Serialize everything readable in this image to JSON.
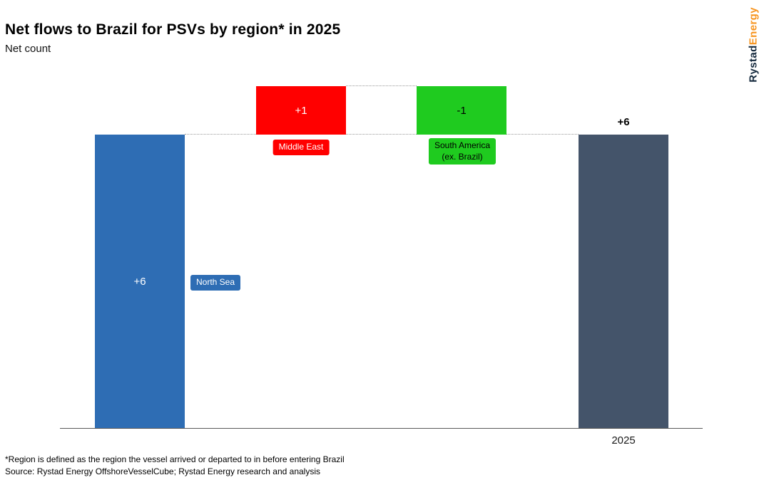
{
  "header": {
    "title": "Net flows to Brazil for PSVs by region* in 2025",
    "subtitle": "Net count"
  },
  "logo": {
    "word1": "Rystad",
    "word2": "Energy",
    "word1_color": "#13283C",
    "word2_color": "#F7941E"
  },
  "chart_data": {
    "type": "bar",
    "subtype": "waterfall",
    "title": "Net flows to Brazil for PSVs by region* in 2025",
    "ylabel": "Net count",
    "ylim": [
      0,
      7
    ],
    "grid": false,
    "legend": "none",
    "categories": [
      "North Sea",
      "Middle East",
      "South America (ex. Brazil)",
      "2025"
    ],
    "values": [
      6,
      1,
      -1,
      6
    ],
    "x_tick_label": "2025",
    "connector_color": "#9A9A9A",
    "axis_color": "#595959",
    "bars": [
      {
        "name": "North Sea",
        "value": 6,
        "display": "+6",
        "start": 0,
        "end": 6,
        "color": "#2E6DB4",
        "label_color": "#FFFFFF",
        "label_position": "inside",
        "badge_text": "North Sea",
        "badge_text_color": "#FFFFFF"
      },
      {
        "name": "Middle East",
        "value": 1,
        "display": "+1",
        "start": 6,
        "end": 7,
        "color": "#FF0000",
        "label_color": "#FFFFFF",
        "label_position": "inside",
        "badge_text": "Middle East",
        "badge_text_color": "#FFFFFF"
      },
      {
        "name": "South America (ex. Brazil)",
        "value": -1,
        "display": "-1",
        "start": 7,
        "end": 6,
        "color": "#1FCB1F",
        "label_color": "#000000",
        "label_position": "inside",
        "badge_line1": "South America",
        "badge_line2": "(ex. Brazil)",
        "badge_text_color": "#000000"
      },
      {
        "name": "2025",
        "value": 6,
        "display": "+6",
        "start": 0,
        "end": 6,
        "color": "#44546A",
        "label_color": "#000000",
        "label_position": "above"
      }
    ]
  },
  "footnotes": [
    "*Region is defined as the region the vessel arrived or departed to in before entering Brazil",
    "Source: Rystad Energy OffshoreVesselCube; Rystad Energy research and analysis"
  ]
}
